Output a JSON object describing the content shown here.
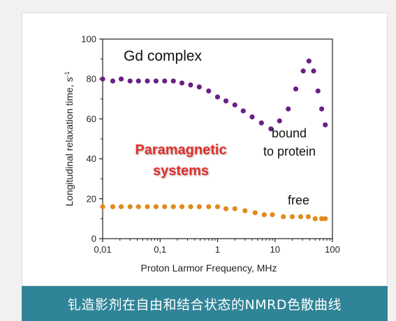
{
  "colors": {
    "bound": "#6b1f86",
    "free": "#e08a1e",
    "paramagnetic": "#e2302b",
    "caption_bg": "#2f8497"
  },
  "caption": "钆造影剂在自由和结合状态的NMRD色散曲线",
  "chart_data": {
    "type": "scatter",
    "x_scale": "log",
    "xlim": [
      0.01,
      100
    ],
    "ylim": [
      0,
      100
    ],
    "xlabel": "Proton Larmor Frequency, MHz",
    "ylabel": "Longitudinal relaxation time, s",
    "ylabel_superscript": "-1",
    "x_ticks": [
      {
        "value": 0.01,
        "label": "0,01"
      },
      {
        "value": 0.1,
        "label": "0,1"
      },
      {
        "value": 1,
        "label": "1"
      },
      {
        "value": 10,
        "label": "10"
      },
      {
        "value": 100,
        "label": "100"
      }
    ],
    "y_ticks": [
      {
        "value": 0,
        "label": "0"
      },
      {
        "value": 20,
        "label": "20"
      },
      {
        "value": 40,
        "label": "40"
      },
      {
        "value": 60,
        "label": "60"
      },
      {
        "value": 80,
        "label": "80"
      },
      {
        "value": 100,
        "label": "100"
      }
    ],
    "grid": false,
    "annotations": {
      "title": "Gd complex",
      "bound_line1": "bound",
      "bound_line2": "to protein",
      "free": "free",
      "system_line1": "Paramagnetic",
      "system_line2": "systems"
    },
    "series": [
      {
        "key": "bound",
        "x": [
          0.01,
          0.015,
          0.021,
          0.03,
          0.042,
          0.06,
          0.085,
          0.12,
          0.17,
          0.24,
          0.34,
          0.48,
          0.7,
          1.0,
          1.4,
          2.0,
          2.8,
          4.0,
          5.8,
          8.5,
          12,
          17,
          23,
          31,
          39,
          47,
          56,
          65,
          75
        ],
        "y": [
          80,
          79,
          80,
          79,
          79,
          79,
          79,
          79,
          79,
          78,
          77,
          76,
          74,
          71,
          69,
          67,
          64,
          61,
          58,
          55,
          59,
          65,
          75,
          84,
          89,
          84,
          74,
          65,
          57
        ]
      },
      {
        "key": "free",
        "x": [
          0.01,
          0.015,
          0.021,
          0.03,
          0.042,
          0.06,
          0.085,
          0.12,
          0.17,
          0.24,
          0.34,
          0.48,
          0.7,
          1.0,
          1.4,
          2.0,
          3.0,
          4.5,
          6.5,
          9.0,
          14,
          20,
          28,
          38,
          50,
          65,
          75
        ],
        "y": [
          16,
          16,
          16,
          16,
          16,
          16,
          16,
          16,
          16,
          16,
          16,
          16,
          16,
          16,
          15,
          15,
          14,
          13,
          12,
          12,
          11,
          11,
          11,
          11,
          10,
          10,
          10
        ]
      }
    ]
  }
}
